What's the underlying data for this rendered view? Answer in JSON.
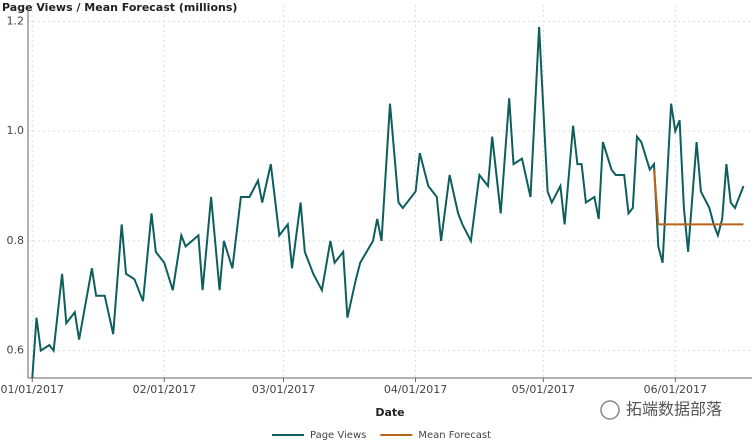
{
  "chart_data": {
    "type": "line",
    "title": "Page Views / Mean Forecast (millions)",
    "x_label": "Date",
    "xlim": [
      "2016-12-31",
      "2017-06-19"
    ],
    "xticks": [
      {
        "value": "2017-01-01",
        "label": "01/01/2017"
      },
      {
        "value": "2017-02-01",
        "label": "02/01/2017"
      },
      {
        "value": "2017-03-01",
        "label": "03/01/2017"
      },
      {
        "value": "2017-04-01",
        "label": "04/01/2017"
      },
      {
        "value": "2017-05-01",
        "label": "05/01/2017"
      },
      {
        "value": "2017-06-01",
        "label": "06/01/2017"
      }
    ],
    "ylim": [
      0.55,
      1.23
    ],
    "yticks": [
      0.6,
      0.8,
      {
        "value": 1,
        "label": "1.0"
      },
      1.2
    ],
    "grid": true,
    "series": [
      {
        "name": "Page Views",
        "color": "#0e5e5e",
        "x": [
          "2017-01-01",
          "2017-01-02",
          "2017-01-03",
          "2017-01-05",
          "2017-01-06",
          "2017-01-08",
          "2017-01-09",
          "2017-01-11",
          "2017-01-12",
          "2017-01-15",
          "2017-01-16",
          "2017-01-18",
          "2017-01-20",
          "2017-01-22",
          "2017-01-23",
          "2017-01-25",
          "2017-01-27",
          "2017-01-29",
          "2017-01-30",
          "2017-02-01",
          "2017-02-03",
          "2017-02-05",
          "2017-02-06",
          "2017-02-09",
          "2017-02-10",
          "2017-02-12",
          "2017-02-14",
          "2017-02-15",
          "2017-02-17",
          "2017-02-19",
          "2017-02-21",
          "2017-02-23",
          "2017-02-24",
          "2017-02-26",
          "2017-02-28",
          "2017-03-02",
          "2017-03-03",
          "2017-03-05",
          "2017-03-06",
          "2017-03-08",
          "2017-03-10",
          "2017-03-12",
          "2017-03-13",
          "2017-03-15",
          "2017-03-16",
          "2017-03-18",
          "2017-03-19",
          "2017-03-22",
          "2017-03-23",
          "2017-03-24",
          "2017-03-26",
          "2017-03-28",
          "2017-03-29",
          "2017-04-01",
          "2017-04-02",
          "2017-04-04",
          "2017-04-06",
          "2017-04-07",
          "2017-04-09",
          "2017-04-11",
          "2017-04-12",
          "2017-04-14",
          "2017-04-16",
          "2017-04-18",
          "2017-04-19",
          "2017-04-21",
          "2017-04-23",
          "2017-04-24",
          "2017-04-26",
          "2017-04-28",
          "2017-04-30",
          "2017-05-02",
          "2017-05-03",
          "2017-05-05",
          "2017-05-06",
          "2017-05-08",
          "2017-05-09",
          "2017-05-10",
          "2017-05-11",
          "2017-05-13",
          "2017-05-14",
          "2017-05-15",
          "2017-05-17",
          "2017-05-18",
          "2017-05-20",
          "2017-05-21",
          "2017-05-22",
          "2017-05-23",
          "2017-05-24",
          "2017-05-26",
          "2017-05-27",
          "2017-05-28",
          "2017-05-29",
          "2017-05-31",
          "2017-06-01",
          "2017-06-02",
          "2017-06-03",
          "2017-06-04",
          "2017-06-06",
          "2017-06-07",
          "2017-06-09",
          "2017-06-10",
          "2017-06-11",
          "2017-06-12",
          "2017-06-13",
          "2017-06-14",
          "2017-06-15",
          "2017-06-16",
          "2017-06-17"
        ],
        "values": [
          0.55,
          0.66,
          0.6,
          0.61,
          0.6,
          0.74,
          0.65,
          0.67,
          0.62,
          0.75,
          0.7,
          0.7,
          0.63,
          0.83,
          0.74,
          0.73,
          0.69,
          0.85,
          0.78,
          0.76,
          0.71,
          0.81,
          0.79,
          0.81,
          0.71,
          0.88,
          0.71,
          0.8,
          0.75,
          0.88,
          0.88,
          0.91,
          0.87,
          0.94,
          0.81,
          0.83,
          0.75,
          0.87,
          0.78,
          0.74,
          0.71,
          0.8,
          0.76,
          0.78,
          0.66,
          0.73,
          0.76,
          0.8,
          0.84,
          0.8,
          1.05,
          0.87,
          0.86,
          0.89,
          0.96,
          0.9,
          0.88,
          0.8,
          0.92,
          0.85,
          0.83,
          0.8,
          0.92,
          0.9,
          0.99,
          0.85,
          1.06,
          0.94,
          0.95,
          0.88,
          1.19,
          0.89,
          0.87,
          0.9,
          0.83,
          1.01,
          0.94,
          0.94,
          0.87,
          0.88,
          0.84,
          0.98,
          0.93,
          0.92,
          0.92,
          0.85,
          0.86,
          0.99,
          0.98,
          0.93,
          0.94,
          0.79,
          0.76,
          1.05,
          1.0,
          1.02,
          0.86,
          0.78,
          0.98,
          0.89,
          0.86,
          0.83,
          0.81,
          0.84,
          0.94,
          0.87,
          0.86,
          0.88,
          0.9
        ]
      },
      {
        "name": "Mean Forecast",
        "color": "#b8641a",
        "x": [
          "2017-05-27",
          "2017-05-28",
          "2017-06-17"
        ],
        "values": [
          0.93,
          0.83,
          0.83
        ]
      }
    ],
    "watermark": "拓端数据部落"
  }
}
